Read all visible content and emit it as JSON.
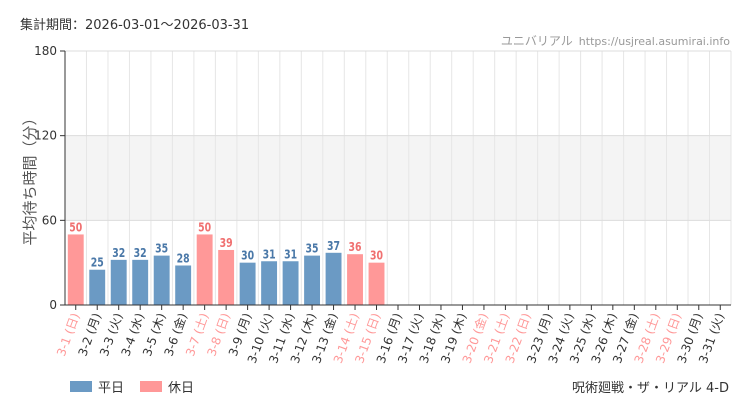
{
  "header": {
    "period": "集計期間：2026-03-01～2026-03-31",
    "site_name": "ユニバリアル",
    "site_url": "https://usjreal.asumirai.info"
  },
  "footer": {
    "attraction": "呪術廻戦・ザ・リアル 4-D"
  },
  "colors": {
    "weekday": "#6b9ac4",
    "holiday": "#ff9898",
    "weekday_label": "#4a78a8",
    "holiday_label": "#f07070"
  },
  "chart_data": {
    "type": "bar",
    "title": "",
    "xlabel": "",
    "ylabel": "平均待ち時間（分）",
    "ylim": [
      0,
      180
    ],
    "yticks": [
      0,
      60,
      120,
      180
    ],
    "shaded_band": [
      60,
      120
    ],
    "grid": true,
    "legend_position": "bottom-left",
    "categories": [
      "3-1 (日)",
      "3-2 (月)",
      "3-3 (火)",
      "3-4 (水)",
      "3-5 (木)",
      "3-6 (金)",
      "3-7 (土)",
      "3-8 (日)",
      "3-9 (月)",
      "3-10 (火)",
      "3-11 (水)",
      "3-12 (木)",
      "3-13 (金)",
      "3-14 (土)",
      "3-15 (日)",
      "3-16 (月)",
      "3-17 (火)",
      "3-18 (水)",
      "3-19 (木)",
      "3-20 (金)",
      "3-21 (土)",
      "3-22 (日)",
      "3-23 (月)",
      "3-24 (火)",
      "3-25 (水)",
      "3-26 (木)",
      "3-27 (金)",
      "3-28 (土)",
      "3-29 (日)",
      "3-30 (月)",
      "3-31 (火)"
    ],
    "values": [
      50,
      25,
      32,
      32,
      35,
      28,
      50,
      39,
      30,
      31,
      31,
      35,
      37,
      36,
      30,
      null,
      null,
      null,
      null,
      null,
      null,
      null,
      null,
      null,
      null,
      null,
      null,
      null,
      null,
      null,
      null
    ],
    "holiday": [
      true,
      false,
      false,
      false,
      false,
      false,
      true,
      true,
      false,
      false,
      false,
      false,
      false,
      true,
      true,
      false,
      false,
      false,
      false,
      true,
      true,
      true,
      false,
      false,
      false,
      false,
      false,
      true,
      true,
      false,
      false
    ],
    "series": [
      {
        "name": "平日"
      },
      {
        "name": "休日"
      }
    ]
  }
}
